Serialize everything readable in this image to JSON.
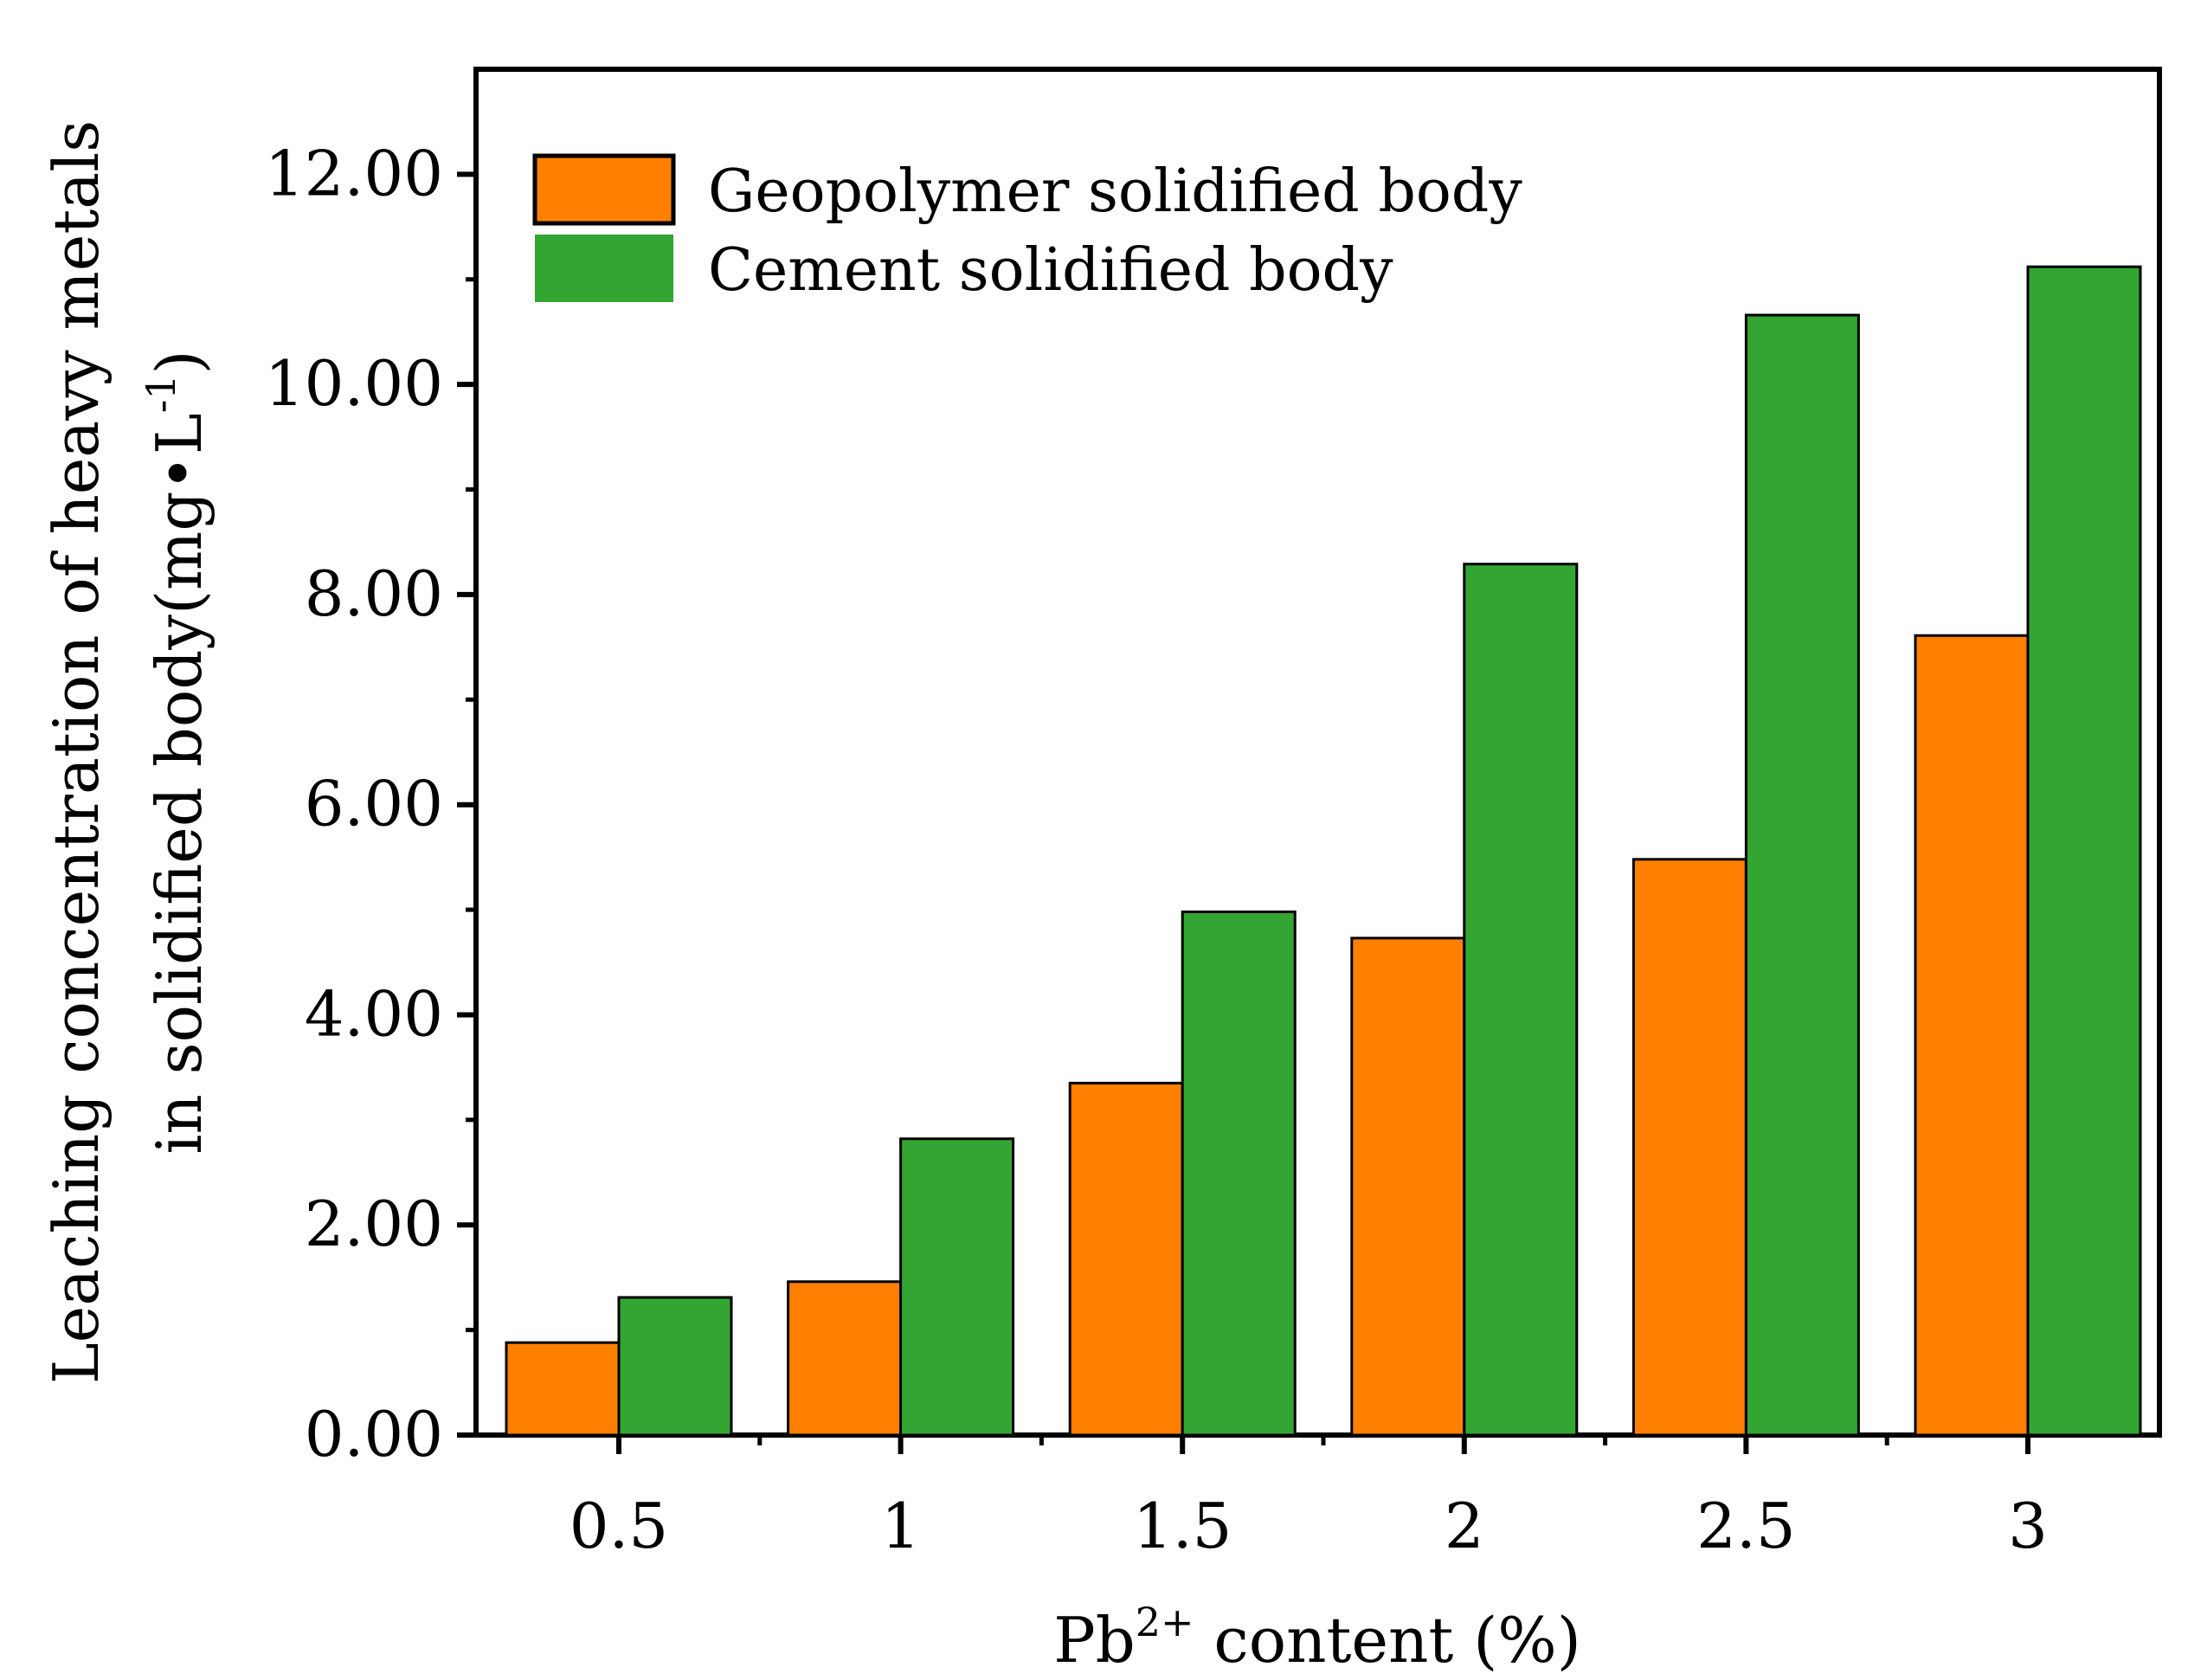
{
  "chart_data": {
    "type": "bar",
    "categories": [
      "0.5",
      "1",
      "1.5",
      "2",
      "2.5",
      "3"
    ],
    "series": [
      {
        "name": "Geopolymer solidified body",
        "color": "#ff8000",
        "values": [
          0.88,
          1.46,
          3.35,
          4.73,
          5.48,
          7.61
        ]
      },
      {
        "name": "Cement solidified body",
        "color": "#33a532",
        "values": [
          1.31,
          2.82,
          4.98,
          8.29,
          10.66,
          11.12
        ]
      }
    ],
    "xlabel_main": "Pb",
    "xlabel_sup": "2+",
    "xlabel_rest": " content (%)",
    "ylabel_line1": "Leaching concentration of heavy metals",
    "ylabel_line2_main": "in solidified body(mg•L",
    "ylabel_line2_sup": "-1",
    "ylabel_line2_end": ")",
    "ylim": [
      0,
      13
    ],
    "yticks": [
      "0.00",
      "2.00",
      "4.00",
      "6.00",
      "8.00",
      "10.00",
      "12.00"
    ],
    "ytick_values": [
      0,
      2,
      4,
      6,
      8,
      10,
      12
    ],
    "legend_position": "top-left",
    "grid": false
  }
}
